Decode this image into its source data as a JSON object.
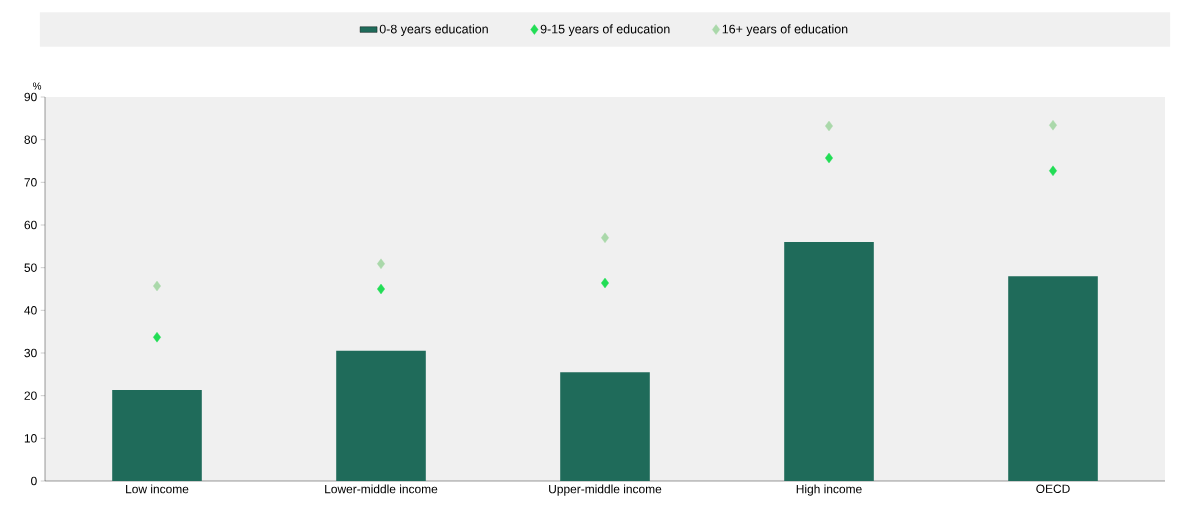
{
  "chart_data": {
    "type": "bar",
    "ylabel": "%",
    "categories": [
      "Low income",
      "Lower-middle income",
      "Upper-middle income",
      "High income",
      "OECD"
    ],
    "series": [
      {
        "name": "0-8 years education",
        "color": "#1f6b5a",
        "values": [
          21.3,
          30.5,
          25.5,
          56,
          48
        ]
      },
      {
        "name": "9-15 years of education",
        "type": "scatter",
        "color": "#22dd55",
        "values": [
          33.7,
          45,
          46.4,
          75.7,
          72.7
        ]
      },
      {
        "name": "16+ years of education",
        "type": "scatter",
        "color": "#aad8aa",
        "values": [
          45.7,
          50.9,
          57,
          83.2,
          83.4
        ]
      }
    ],
    "ylim": [
      0,
      90
    ],
    "yticks": [
      0,
      10,
      20,
      30,
      40,
      50,
      60,
      70,
      80,
      90
    ],
    "legend": "top",
    "marker": "diamond",
    "grid": false
  }
}
